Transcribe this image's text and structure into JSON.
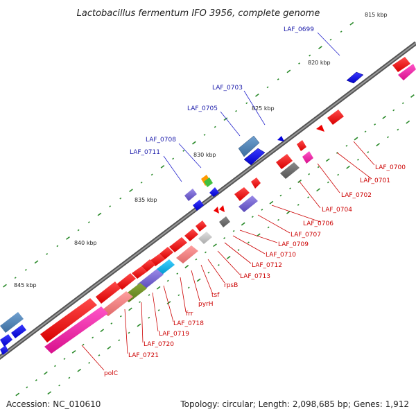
{
  "title": "Lactobacillus fermentum IFO 3956, complete genome",
  "footer": {
    "accession": "Accession: NC_010610",
    "summary": "Topology: circular; Length: 2,098,685 bp; Genes: 1,912"
  },
  "scale_labels": [
    "815 kbp",
    "820 kbp",
    "825 kbp",
    "830 kbp",
    "835 kbp",
    "840 kbp",
    "845 kbp"
  ],
  "genes_forward": [
    "LAF_0699",
    "LAF_0703",
    "LAF_0705",
    "LAF_0708",
    "LAF_0711"
  ],
  "genes_reverse": [
    "LAF_0700",
    "LAF_0701",
    "LAF_0702",
    "LAF_0704",
    "LAF_0706",
    "LAF_0707",
    "LAF_0709",
    "LAF_0710",
    "LAF_0712",
    "LAF_0713",
    "rpsB",
    "tsf",
    "pyrH",
    "frr",
    "LAF_0718",
    "LAF_0719",
    "LAF_0720",
    "LAF_0721",
    "polC"
  ],
  "colors": {
    "forward_label": "#1a1aaa",
    "reverse_label": "#cc0000",
    "backbone": "#707070",
    "gc_marks": "#2a8a2a"
  }
}
